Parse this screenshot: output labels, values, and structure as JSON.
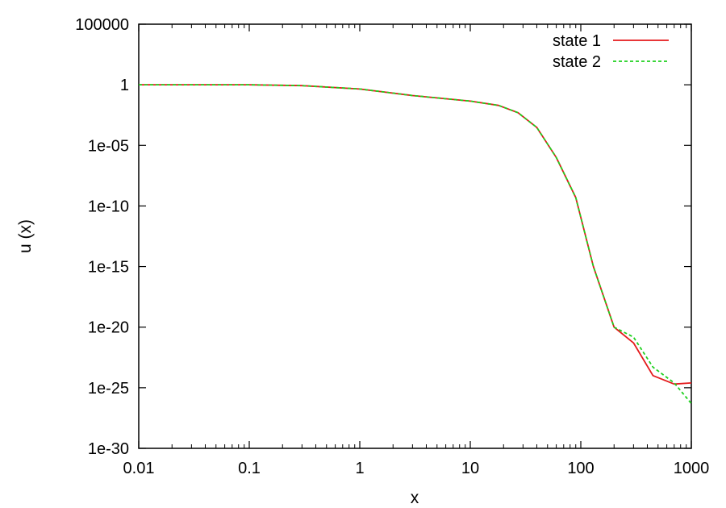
{
  "chart_data": {
    "type": "line",
    "title": "",
    "xlabel": "x",
    "ylabel": "u (x)",
    "x_scale": "log",
    "y_scale": "log",
    "xlim": [
      0.01,
      1000
    ],
    "ylim": [
      1e-30,
      100000
    ],
    "x_ticks": [
      {
        "value": 0.01,
        "label": "0.01"
      },
      {
        "value": 0.1,
        "label": "0.1"
      },
      {
        "value": 1,
        "label": "1"
      },
      {
        "value": 10,
        "label": "10"
      },
      {
        "value": 100,
        "label": "100"
      },
      {
        "value": 1000,
        "label": "1000"
      }
    ],
    "y_ticks": [
      {
        "value": 100000.0,
        "label": "100000"
      },
      {
        "value": 1,
        "label": "1"
      },
      {
        "value": 1e-05,
        "label": "1e-05"
      },
      {
        "value": 1e-10,
        "label": "1e-10"
      },
      {
        "value": 1e-15,
        "label": "1e-15"
      },
      {
        "value": 1e-20,
        "label": "1e-20"
      },
      {
        "value": 1e-25,
        "label": "1e-25"
      },
      {
        "value": 1e-30,
        "label": "1e-30"
      }
    ],
    "grid": false,
    "legend_position": "top-right",
    "series": [
      {
        "name": "state 1",
        "color": "#e41a1c",
        "dash": "solid",
        "x": [
          0.01,
          0.1,
          0.3,
          1,
          3,
          10,
          18,
          27,
          40,
          60,
          90,
          130,
          200,
          300,
          450,
          700,
          1000
        ],
        "y": [
          1,
          1,
          0.85,
          0.45,
          0.13,
          0.045,
          0.02,
          0.005,
          0.0003,
          1e-06,
          5e-10,
          1e-15,
          1e-20,
          5e-22,
          1e-24,
          2e-25,
          2.5e-25
        ]
      },
      {
        "name": "state 2",
        "color": "#1fd01f",
        "dash": "dashed",
        "x": [
          0.01,
          0.1,
          0.3,
          1,
          3,
          10,
          18,
          27,
          40,
          60,
          90,
          130,
          200,
          300,
          450,
          700,
          1000
        ],
        "y": [
          1,
          1,
          0.85,
          0.45,
          0.13,
          0.045,
          0.02,
          0.005,
          0.0003,
          1e-06,
          5e-10,
          1e-15,
          1e-20,
          1.5e-21,
          5e-24,
          2.5e-25,
          5e-27
        ]
      }
    ]
  }
}
